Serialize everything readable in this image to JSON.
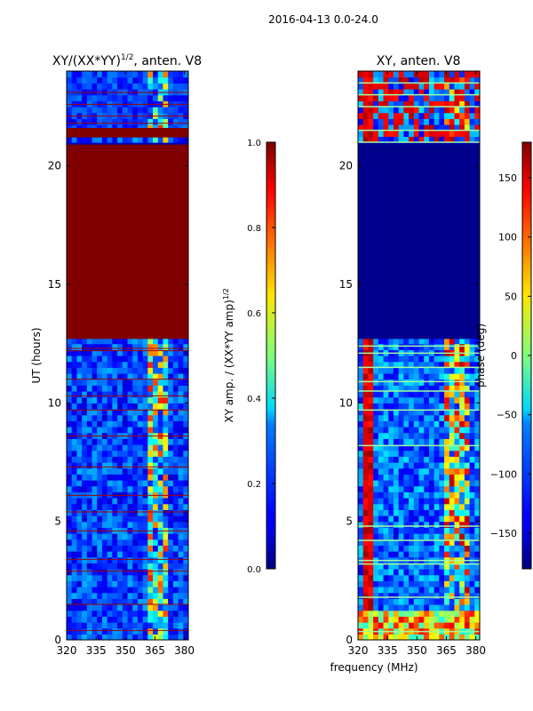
{
  "figure": {
    "suptitle": "2016-04-13 0.0-24.0",
    "shared_xlabel": "frequency (MHz)"
  },
  "chart_data": [
    {
      "type": "heatmap",
      "title": "XY/(XX*YY)",
      "title_exponent": "1/2",
      "title_suffix": ", anten. V8",
      "ylabel": "UT (hours)",
      "xlim": [
        320,
        382
      ],
      "ylim": [
        0,
        24
      ],
      "xticks": [
        "320",
        "335",
        "350",
        "365",
        "380"
      ],
      "yticks": [
        "0",
        "5",
        "10",
        "15",
        "20"
      ],
      "colorbar": {
        "label": "XY amp. / (XX*YY amp)",
        "label_exponent": "1/2",
        "range": [
          0.0,
          1.0
        ],
        "ticks": [
          "0.0",
          "0.2",
          "0.4",
          "0.6",
          "0.8",
          "1.0"
        ]
      },
      "colormap": "jet",
      "colors": {
        "saturated": "#800000",
        "low": "#0000c8",
        "mid": "#00d8ff",
        "high": "#ffe000"
      },
      "regions": [
        {
          "name": "saturated-band",
          "ut_range": [
            12.7,
            20.9
          ],
          "value": 1.0
        },
        {
          "name": "saturated-band-upper",
          "ut_range": [
            21.2,
            21.6
          ],
          "value": 1.0
        },
        {
          "name": "rfi-band",
          "freq_range": [
            361,
            372
          ],
          "ut_range": [
            0,
            12.7
          ],
          "value": 0.45
        },
        {
          "name": "background",
          "value": 0.1
        }
      ]
    },
    {
      "type": "heatmap",
      "title": "XY, anten. V8",
      "xlim": [
        320,
        382
      ],
      "ylim": [
        0,
        24
      ],
      "xticks": [
        "320",
        "335",
        "350",
        "365",
        "380"
      ],
      "yticks": [
        "0",
        "5",
        "10",
        "15",
        "20"
      ],
      "colorbar": {
        "label": "phase (deg)",
        "range": [
          -180,
          180
        ],
        "ticks": [
          "-150",
          "-100",
          "-50",
          "0",
          "50",
          "100",
          "150"
        ]
      },
      "colormap": "jet",
      "colors": {
        "low": "#000090",
        "mid": "#00c8ff",
        "high": "#ff2000"
      },
      "regions": [
        {
          "name": "flat-band",
          "ut_range": [
            12.7,
            20.9
          ],
          "value": -180
        },
        {
          "name": "rfi-band",
          "freq_range": [
            363,
            378
          ],
          "ut_range": [
            0,
            12.7
          ],
          "value": 60
        },
        {
          "name": "background",
          "value": -130
        }
      ]
    }
  ]
}
